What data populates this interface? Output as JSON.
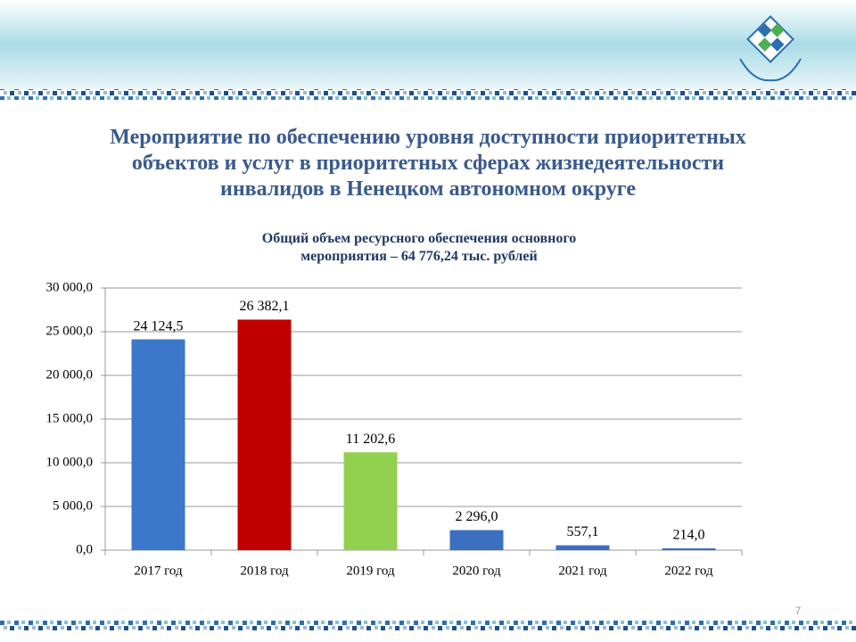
{
  "page_number": "7",
  "chart_data": {
    "type": "bar",
    "title": "Мероприятие по обеспечению уровня доступности приоритетных\nобъектов и услуг в приоритетных сферах жизнедеятельности\nинвалидов в Ненецком автономном округе",
    "subtitle": "Общий объем ресурсного обеспечения основного\nмероприятия – 64 776,24 тыс. рублей",
    "categories": [
      "2017 год",
      "2018 год",
      "2019 год",
      "2020 год",
      "2021 год",
      "2022 год"
    ],
    "values": [
      24124.5,
      26382.1,
      11202.6,
      2296.0,
      557.1,
      214.0
    ],
    "value_labels": [
      "24 124,5",
      "26 382,1",
      "11 202,6",
      "2 296,0",
      "557,1",
      "214,0"
    ],
    "colors": [
      "#3b78c9",
      "#c00000",
      "#92d050",
      "#3b70c0",
      "#3b70c0",
      "#3b70c0"
    ],
    "ylim": [
      0,
      30000
    ],
    "yticks": [
      {
        "value": 0,
        "label": "0,0"
      },
      {
        "value": 5000,
        "label": "5 000,0"
      },
      {
        "value": 10000,
        "label": "10 000,0"
      },
      {
        "value": 15000,
        "label": "15 000,0"
      },
      {
        "value": 20000,
        "label": "20 000,0"
      },
      {
        "value": 25000,
        "label": "25 000,0"
      },
      {
        "value": 30000,
        "label": "30 000,0"
      }
    ],
    "grid": true
  }
}
